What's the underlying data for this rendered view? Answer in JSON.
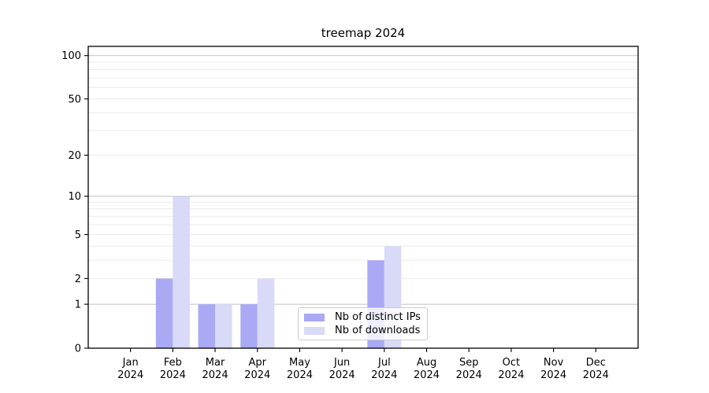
{
  "title": "treemap 2024",
  "chart_data": {
    "type": "bar",
    "title": "treemap 2024",
    "categories": [
      "Jan 2024",
      "Feb 2024",
      "Mar 2024",
      "Apr 2024",
      "May 2024",
      "Jun 2024",
      "Jul 2024",
      "Aug 2024",
      "Sep 2024",
      "Oct 2024",
      "Nov 2024",
      "Dec 2024"
    ],
    "series": [
      {
        "name": "Nb of distinct IPs",
        "color": "#a9a9f4",
        "values": [
          0,
          2,
          1,
          1,
          0,
          0,
          3,
          0,
          0,
          0,
          0,
          0
        ]
      },
      {
        "name": "Nb of downloads",
        "color": "#d9d9f8",
        "values": [
          0,
          10,
          1,
          2,
          0,
          0,
          4,
          0,
          0,
          0,
          0,
          0
        ]
      }
    ],
    "xlabel": "",
    "ylabel": "",
    "yscale": "log1p",
    "ylim": [
      0,
      116
    ],
    "ytick_values": [
      0,
      1,
      2,
      5,
      10,
      20,
      50,
      100
    ],
    "ytick_labels": [
      "0",
      "1",
      "2",
      "5",
      "10",
      "20",
      "50",
      "100"
    ],
    "major_grid_values": [
      1,
      10,
      100
    ],
    "minor_grid_values": [
      2,
      3,
      4,
      5,
      6,
      7,
      8,
      9,
      20,
      30,
      40,
      50,
      60,
      70,
      80,
      90
    ],
    "grid": true,
    "legend_position": "lower center"
  },
  "colors": {
    "background": "#ffffff",
    "axis": "#000000",
    "tick_text": "#000000",
    "grid_major": "#c2c2c2",
    "grid_minor": "#ececec",
    "legend_border": "#cccccc",
    "bar_distinct_ips": "#a9a9f4",
    "bar_downloads": "#d9d9f8"
  }
}
